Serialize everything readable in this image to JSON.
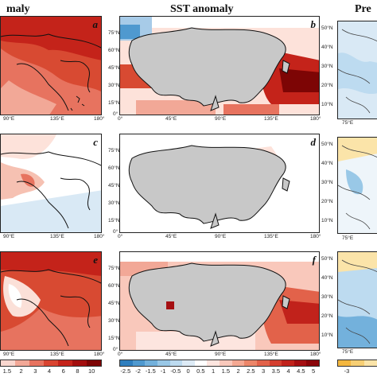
{
  "titles": {
    "col1": "maly",
    "col2": "SST anomaly",
    "col3": "Pre"
  },
  "panels": {
    "a": "a",
    "b": "b",
    "c": "c",
    "d": "d",
    "e": "e",
    "f": "f"
  },
  "ticks": {
    "lat_mid": [
      "75°N",
      "60°N",
      "45°N",
      "30°N",
      "15°N",
      "0°"
    ],
    "lon_mid": [
      "0°",
      "45°E",
      "90°E",
      "135°E",
      "180°"
    ],
    "lon_left": [
      "90°E",
      "135°E",
      "180°"
    ],
    "lat_right": [
      "50°N",
      "40°N",
      "30°N",
      "20°N",
      "10°N"
    ],
    "lon_right": "75°E"
  },
  "colorbars": {
    "left_labels": [
      "1.5",
      "2",
      "3",
      "4",
      "6",
      "8",
      "10"
    ],
    "mid_labels": [
      "-2.5",
      "-2",
      "-1.5",
      "-1",
      "-0.5",
      "0",
      "0.5",
      "1",
      "1.5",
      "2",
      "2.5",
      "3",
      "3.5",
      "4",
      "4.5",
      "5"
    ],
    "right_labels": [
      "-3"
    ],
    "left_colors": [
      "#f9d7cf",
      "#f2a897",
      "#e7735f",
      "#d94430",
      "#c4231a",
      "#a30e0e",
      "#7d0505"
    ],
    "mid_colors": [
      "#2f7fbf",
      "#4f99cf",
      "#73b1dc",
      "#99c8e7",
      "#bddbf0",
      "#ddebf6",
      "#ffffff",
      "#fde5df",
      "#f9c8bb",
      "#f4a892",
      "#ec8669",
      "#e2624a",
      "#d43f2f",
      "#c1221b",
      "#a50f12",
      "#8a0509"
    ],
    "right_colors": [
      "#f4b73f",
      "#f7cf74",
      "#fbe4a9"
    ]
  },
  "colors": {
    "land": "#c8c8c8",
    "warm": "#d84a32",
    "hot": "#b81e14",
    "light_warm": "#f6c1b2",
    "pale_warm": "#fde2da",
    "cool": "#d9e9f5",
    "blue": "#a7cbe8"
  }
}
